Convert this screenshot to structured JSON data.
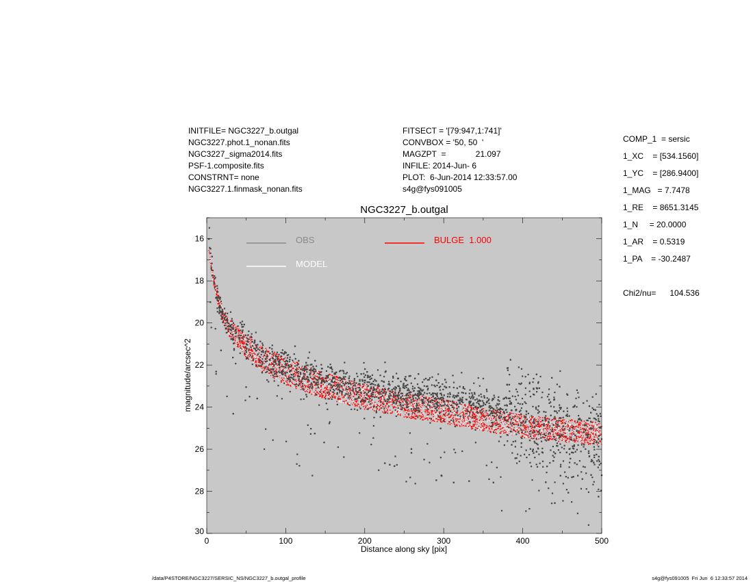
{
  "header_left": [
    "INITFILE= NGC3227_b.outgal",
    "NGC3227.phot.1_nonan.fits",
    "NGC3227_sigma2014.fits",
    "PSF-1.composite.fits",
    "CONSTRNT= none",
    "NGC3227.1.finmask_nonan.fits"
  ],
  "header_middle": [
    "FITSECT = '[79:947,1:741]'",
    "CONVBOX = '50, 50  '",
    "MAGZPT  =             21.097",
    "INFILE: 2014-Jun- 6",
    "PLOT:  6-Jun-2014 12:33:57.00",
    "s4g@fys091005"
  ],
  "params": [
    "COMP_1  = sersic",
    "1_XC    = [534.1560]",
    "1_YC    = [286.9400]",
    "1_MAG   = 7.7478",
    "1_RE    = 8651.3145",
    "1_N     = 20.0000",
    "1_AR    = 0.5319",
    "1_PA    = -30.2487",
    "",
    "Chi2/nu=      104.536"
  ],
  "footer": {
    "left": "/data/P4STORE/NGC3227/SERSIC_NS/NGC3227_b.outgal_profile",
    "right": "s4g@fys091005  Fri Jun  6 12:33:57 2014"
  },
  "colors": {
    "plot_bg": "#c8c8c8",
    "obs": "#464646",
    "obs_legend": "#8a8a8a",
    "model": "#ffffff",
    "bulge": "#ff0000"
  },
  "chart_data": {
    "type": "scatter",
    "title": "NGC3227_b.outgal",
    "xlabel": "Distance along sky [pix]",
    "ylabel": "magnitude/arcsec^2",
    "xlim": [
      0,
      500
    ],
    "ylim": [
      30,
      15
    ],
    "y_inverted": true,
    "grid": false,
    "xticks": [
      0,
      100,
      200,
      300,
      400,
      500
    ],
    "yticks": [
      16,
      18,
      20,
      22,
      24,
      26,
      28,
      30
    ],
    "legend": [
      {
        "label": "OBS",
        "color": "#8a8a8a"
      },
      {
        "label": "MODEL",
        "color": "#ffffff"
      },
      {
        "label": "BULGE  1.000",
        "color": "#ff0000"
      }
    ],
    "series": [
      {
        "name": "OBS",
        "x": [
          2,
          5,
          10,
          20,
          30,
          50,
          70,
          90,
          100,
          120,
          150,
          200,
          250,
          300,
          350,
          400,
          450,
          500
        ],
        "y": [
          15.4,
          16.8,
          18.3,
          19.6,
          20.3,
          21.0,
          21.6,
          22.1,
          22.2,
          22.4,
          22.8,
          23.2,
          23.4,
          23.6,
          23.9,
          24.5,
          25.2,
          25.6
        ],
        "spread": 0.9
      },
      {
        "name": "MODEL",
        "x": [
          3,
          5,
          10,
          20,
          30,
          50,
          70,
          100,
          150,
          200,
          250,
          300,
          350,
          400,
          450,
          500
        ],
        "y": [
          16.6,
          17.2,
          18.3,
          19.6,
          20.3,
          21.1,
          21.7,
          22.3,
          23.0,
          23.5,
          23.9,
          24.2,
          24.6,
          24.9,
          25.1,
          25.3
        ]
      },
      {
        "name": "BULGE  1.000",
        "x": [
          3,
          5,
          10,
          20,
          30,
          50,
          70,
          100,
          150,
          200,
          250,
          300,
          350,
          400,
          450,
          500
        ],
        "y": [
          16.6,
          17.2,
          18.3,
          19.6,
          20.3,
          21.1,
          21.7,
          22.3,
          23.0,
          23.5,
          23.9,
          24.2,
          24.6,
          24.9,
          25.1,
          25.3
        ],
        "band_half_width": [
          0.05,
          0.1,
          0.2,
          0.35,
          0.45,
          0.55,
          0.6,
          0.65,
          0.62,
          0.6,
          0.58,
          0.56,
          0.55,
          0.55,
          0.55,
          0.55
        ]
      }
    ]
  }
}
